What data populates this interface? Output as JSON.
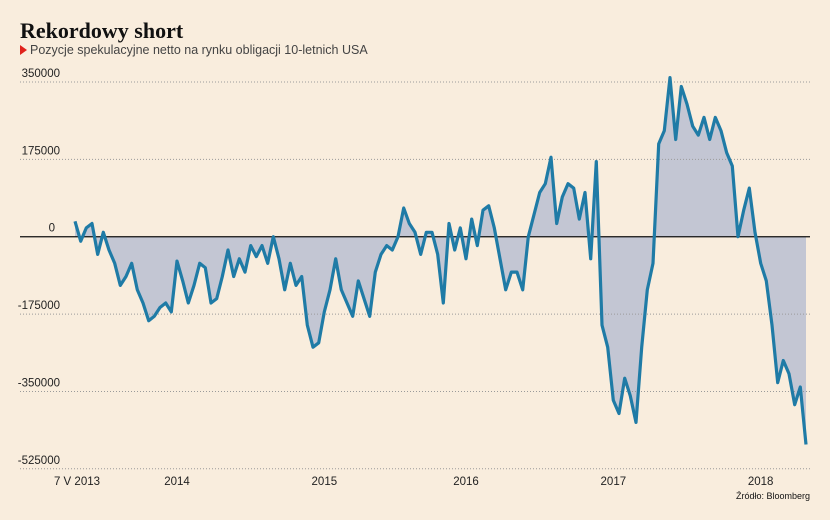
{
  "chart_data": {
    "type": "area",
    "title": "Rekordowy short",
    "subtitle": "Pozycje spekulacyjne netto na rynku obligacji 10-letnich USA",
    "source": "Źródło: Bloomberg",
    "categories": [
      "7 V 2013",
      null,
      null,
      null,
      null,
      null,
      null,
      null,
      null,
      null,
      null,
      null,
      null,
      null,
      null,
      null,
      null,
      null,
      "2014",
      null,
      null,
      null,
      null,
      null,
      null,
      null,
      null,
      null,
      null,
      null,
      null,
      null,
      null,
      null,
      null,
      null,
      null,
      null,
      null,
      null,
      null,
      null,
      null,
      null,
      "2015",
      null,
      null,
      null,
      null,
      null,
      null,
      null,
      null,
      null,
      null,
      null,
      null,
      null,
      null,
      null,
      null,
      null,
      null,
      null,
      null,
      null,
      null,
      null,
      null,
      "2016",
      null,
      null,
      null,
      null,
      null,
      null,
      null,
      null,
      null,
      null,
      null,
      null,
      null,
      null,
      null,
      null,
      null,
      null,
      null,
      null,
      null,
      null,
      null,
      null,
      null,
      "2017",
      null,
      null,
      null,
      null,
      null,
      null,
      null,
      null,
      null,
      null,
      null,
      null,
      null,
      null,
      null,
      null,
      null,
      null,
      null,
      null,
      null,
      null,
      null,
      null,
      null,
      "2018",
      null,
      null,
      null,
      null,
      null,
      null,
      null,
      null
    ],
    "values": [
      35000,
      -10000,
      20000,
      30000,
      -40000,
      10000,
      -30000,
      -60000,
      -110000,
      -90000,
      -60000,
      -120000,
      -150000,
      -190000,
      -180000,
      -160000,
      -150000,
      -170000,
      -55000,
      -100000,
      -150000,
      -110000,
      -60000,
      -70000,
      -150000,
      -140000,
      -90000,
      -30000,
      -90000,
      -50000,
      -80000,
      -20000,
      -45000,
      -20000,
      -60000,
      0,
      -50000,
      -120000,
      -60000,
      -110000,
      -90000,
      -200000,
      -250000,
      -240000,
      -170000,
      -120000,
      -50000,
      -120000,
      -150000,
      -180000,
      -100000,
      -140000,
      -180000,
      -80000,
      -40000,
      -20000,
      -30000,
      0,
      65000,
      30000,
      10000,
      -40000,
      10000,
      10000,
      -40000,
      -150000,
      30000,
      -30000,
      20000,
      -50000,
      40000,
      -20000,
      60000,
      70000,
      20000,
      -50000,
      -120000,
      -80000,
      -80000,
      -120000,
      0,
      50000,
      100000,
      120000,
      180000,
      30000,
      90000,
      120000,
      110000,
      40000,
      100000,
      -50000,
      170000,
      -200000,
      -250000,
      -370000,
      -400000,
      -320000,
      -360000,
      -420000,
      -250000,
      -120000,
      -60000,
      210000,
      240000,
      360000,
      220000,
      340000,
      300000,
      250000,
      230000,
      270000,
      220000,
      270000,
      240000,
      190000,
      160000,
      0,
      60000,
      110000,
      10000,
      -60000,
      -100000,
      -200000,
      -330000,
      -280000,
      -310000,
      -380000,
      -340000,
      -470000
    ],
    "line_color": "#1f7ba6",
    "fill_color": "#c3c6d3",
    "ylim": [
      -530000,
      375000
    ],
    "yticks": [
      350000,
      175000,
      0,
      -175000,
      -350000,
      -525000
    ],
    "grid": true
  }
}
